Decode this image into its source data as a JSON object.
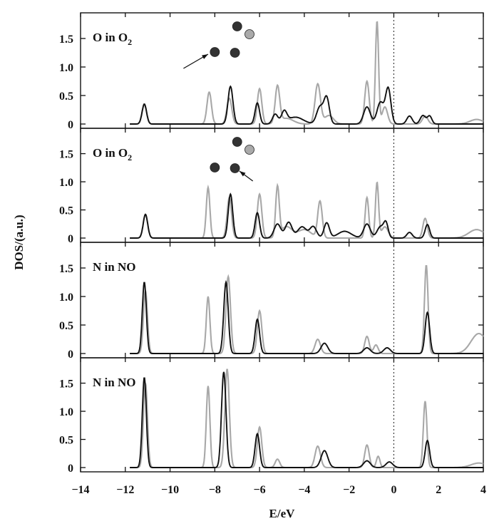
{
  "chart_data": {
    "type": "line",
    "xlabel": "E/eV",
    "ylabel": "DOS/(a.u.)",
    "xlim": [
      -14,
      4
    ],
    "x_ticks": [
      -14,
      -12,
      -10,
      -8,
      -6,
      -4,
      -2,
      0,
      2,
      4
    ],
    "y_ticks": [
      0,
      0.5,
      1.0,
      1.5
    ],
    "fermi_level": 0,
    "colors": {
      "dark": "#111111",
      "light": "#a8a8a8"
    },
    "panels": [
      {
        "label_main": "O in O",
        "label_sub": "2",
        "ylim": [
          0,
          1.9
        ],
        "molecule": "arrow-lower-left",
        "series": [
          {
            "color": "light",
            "peaks": [
              [
                -11.15,
                0.34,
                0.1
              ],
              [
                -8.25,
                0.56,
                0.1
              ],
              [
                -7.35,
                0.45,
                0.11
              ],
              [
                -6.0,
                0.62,
                0.1
              ],
              [
                -5.2,
                0.64,
                0.1
              ],
              [
                -4.8,
                0.1,
                0.3
              ],
              [
                -3.4,
                0.7,
                0.12
              ],
              [
                -2.9,
                0.15,
                0.2
              ],
              [
                -1.2,
                0.75,
                0.1
              ],
              [
                -0.75,
                1.8,
                0.07
              ],
              [
                -0.4,
                0.3,
                0.12
              ],
              [
                1.4,
                0.14,
                0.12
              ],
              [
                3.7,
                0.08,
                0.3
              ]
            ]
          },
          {
            "color": "dark",
            "peaks": [
              [
                -11.15,
                0.35,
                0.1
              ],
              [
                -7.3,
                0.66,
                0.11
              ],
              [
                -6.1,
                0.37,
                0.1
              ],
              [
                -5.3,
                0.17,
                0.12
              ],
              [
                -4.9,
                0.2,
                0.12
              ],
              [
                -4.4,
                0.12,
                0.35
              ],
              [
                -3.3,
                0.3,
                0.15
              ],
              [
                -3.0,
                0.45,
                0.12
              ],
              [
                -1.2,
                0.3,
                0.15
              ],
              [
                -0.6,
                0.38,
                0.15
              ],
              [
                -0.25,
                0.62,
                0.12
              ],
              [
                0.7,
                0.14,
                0.12
              ],
              [
                1.3,
                0.15,
                0.12
              ],
              [
                1.6,
                0.14,
                0.1
              ]
            ]
          }
        ]
      },
      {
        "label_main": "O in O",
        "label_sub": "2",
        "ylim": [
          0,
          1.9
        ],
        "molecule": "arrow-right",
        "series": [
          {
            "color": "light",
            "peaks": [
              [
                -11.1,
                0.42,
                0.1
              ],
              [
                -8.3,
                0.9,
                0.08
              ],
              [
                -7.35,
                0.72,
                0.1
              ],
              [
                -6.0,
                0.78,
                0.1
              ],
              [
                -5.2,
                0.88,
                0.08
              ],
              [
                -4.8,
                0.2,
                0.25
              ],
              [
                -4.0,
                0.15,
                0.3
              ],
              [
                -3.3,
                0.65,
                0.1
              ],
              [
                -1.2,
                0.72,
                0.08
              ],
              [
                -0.75,
                0.98,
                0.07
              ],
              [
                -0.4,
                0.2,
                0.15
              ],
              [
                1.4,
                0.35,
                0.1
              ],
              [
                3.7,
                0.15,
                0.35
              ]
            ]
          },
          {
            "color": "dark",
            "peaks": [
              [
                -11.1,
                0.42,
                0.1
              ],
              [
                -7.3,
                0.78,
                0.1
              ],
              [
                -6.1,
                0.45,
                0.1
              ],
              [
                -5.2,
                0.25,
                0.15
              ],
              [
                -4.7,
                0.28,
                0.15
              ],
              [
                -4.1,
                0.2,
                0.2
              ],
              [
                -3.6,
                0.2,
                0.15
              ],
              [
                -3.0,
                0.27,
                0.12
              ],
              [
                -2.2,
                0.12,
                0.3
              ],
              [
                -1.2,
                0.25,
                0.15
              ],
              [
                -0.6,
                0.2,
                0.15
              ],
              [
                -0.35,
                0.25,
                0.1
              ],
              [
                0.7,
                0.1,
                0.12
              ],
              [
                1.5,
                0.24,
                0.1
              ]
            ]
          }
        ]
      },
      {
        "label_main": "N in NO",
        "label_sub": "",
        "ylim": [
          0,
          1.9
        ],
        "molecule": "",
        "series": [
          {
            "color": "light",
            "peaks": [
              [
                -11.1,
                1.1,
                0.09
              ],
              [
                -8.3,
                1.0,
                0.08
              ],
              [
                -7.4,
                1.35,
                0.1
              ],
              [
                -6.0,
                0.75,
                0.1
              ],
              [
                -3.4,
                0.25,
                0.12
              ],
              [
                -1.2,
                0.3,
                0.1
              ],
              [
                -0.8,
                0.15,
                0.1
              ],
              [
                1.45,
                1.55,
                0.08
              ],
              [
                3.8,
                0.35,
                0.35
              ]
            ]
          },
          {
            "color": "dark",
            "peaks": [
              [
                -11.15,
                1.25,
                0.09
              ],
              [
                -7.5,
                1.25,
                0.1
              ],
              [
                -6.1,
                0.6,
                0.1
              ],
              [
                -3.1,
                0.18,
                0.15
              ],
              [
                -1.2,
                0.1,
                0.15
              ],
              [
                -0.3,
                0.1,
                0.15
              ],
              [
                1.5,
                0.72,
                0.1
              ]
            ]
          }
        ]
      },
      {
        "label_main": "N in NO",
        "label_sub": "",
        "ylim": [
          0,
          1.9
        ],
        "molecule": "",
        "series": [
          {
            "color": "light",
            "peaks": [
              [
                -11.1,
                1.5,
                0.09
              ],
              [
                -8.3,
                1.45,
                0.08
              ],
              [
                -7.45,
                1.75,
                0.1
              ],
              [
                -6.0,
                0.72,
                0.1
              ],
              [
                -5.2,
                0.15,
                0.1
              ],
              [
                -3.4,
                0.38,
                0.12
              ],
              [
                -1.2,
                0.4,
                0.1
              ],
              [
                -0.7,
                0.2,
                0.08
              ],
              [
                1.4,
                1.18,
                0.08
              ],
              [
                3.8,
                0.08,
                0.35
              ]
            ]
          },
          {
            "color": "dark",
            "peaks": [
              [
                -11.15,
                1.6,
                0.09
              ],
              [
                -7.6,
                1.7,
                0.1
              ],
              [
                -6.1,
                0.6,
                0.1
              ],
              [
                -3.1,
                0.3,
                0.15
              ],
              [
                -1.2,
                0.12,
                0.15
              ],
              [
                -0.2,
                0.1,
                0.15
              ],
              [
                1.5,
                0.48,
                0.1
              ]
            ]
          }
        ]
      }
    ]
  }
}
